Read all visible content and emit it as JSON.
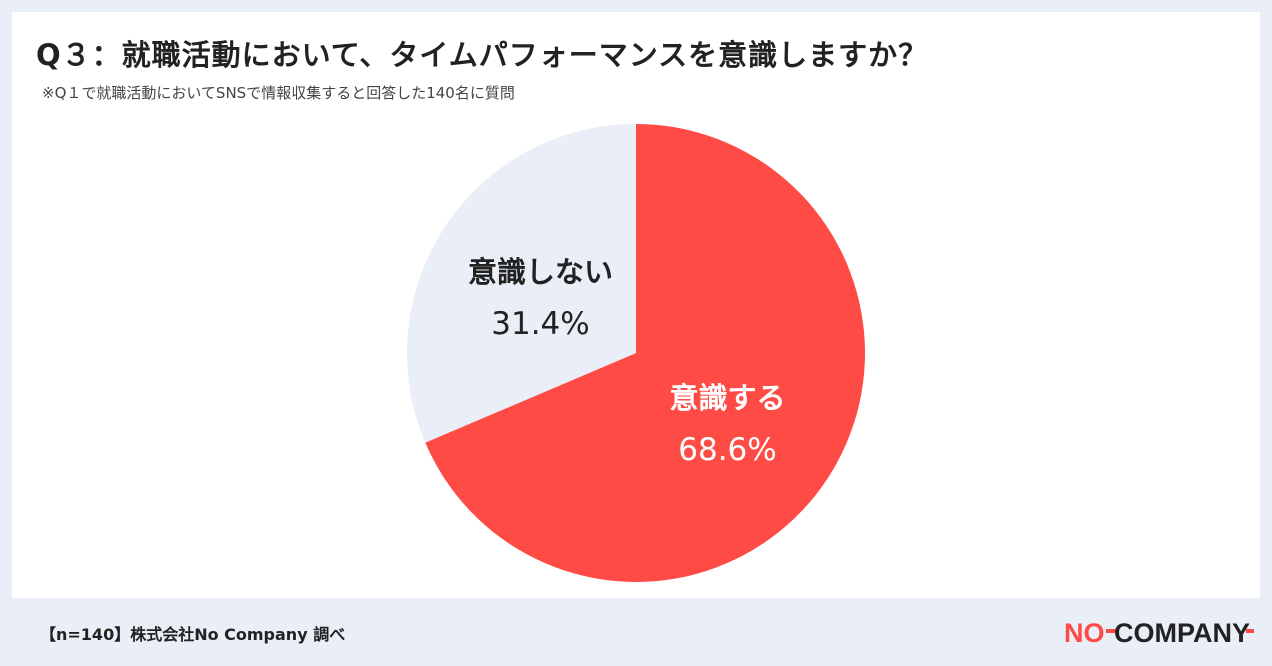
{
  "header": {
    "title": "Q３：就職活動において、タイムパフォーマンスを意識しますか？",
    "subtitle": "※Q１で就職活動においてSNSで情報収集すると回答した140名に質問"
  },
  "footer": {
    "source": "【n=140】株式会社No Company 調べ",
    "logo_text": "NO-COMPANY"
  },
  "colors": {
    "background": "#e9eef7",
    "card": "#ffffff",
    "accent_red": "#ff4b45",
    "slice_light": "#e9eef7",
    "text_dark": "#222222",
    "text_light": "#ffffff"
  },
  "chart_data": {
    "type": "pie",
    "title": "Q３：就職活動において、タイムパフォーマンスを意識しますか？",
    "slices": [
      {
        "label": "意識する",
        "value": 68.6,
        "value_label": "68.6%",
        "color": "#ff4b45"
      },
      {
        "label": "意識しない",
        "value": 31.4,
        "value_label": "31.4%",
        "color": "#e9eef7"
      }
    ],
    "start": "12 o'clock",
    "direction": "clockwise",
    "legend": "none"
  }
}
